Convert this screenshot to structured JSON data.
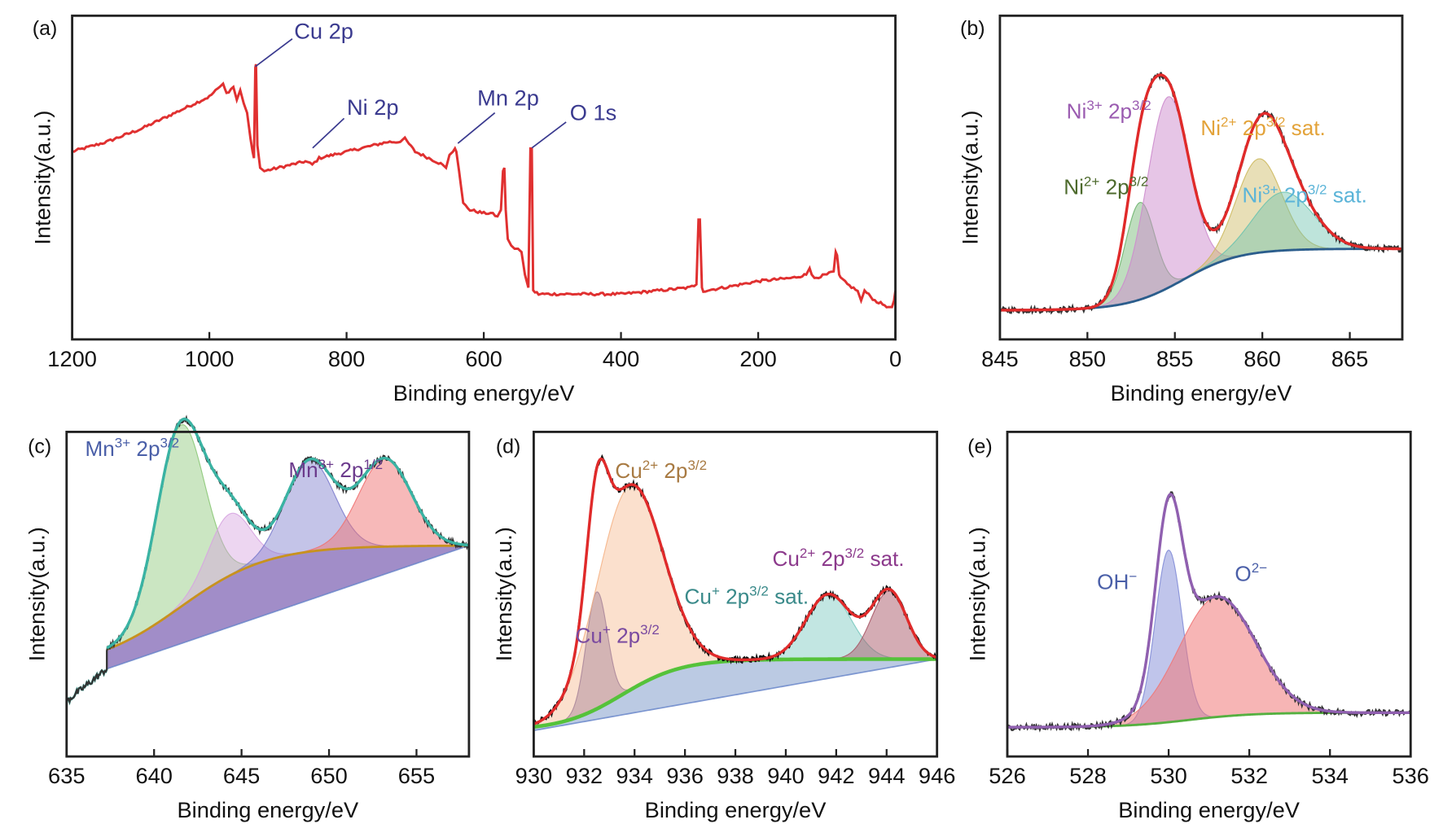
{
  "chart_data": [
    {
      "panel": "(a)",
      "type": "line",
      "xlabel": "Binding energy/eV",
      "ylabel": "Intensity(a.u.)",
      "xlim": [
        1200,
        0
      ],
      "ylim": [
        0,
        1
      ],
      "x_reversed": true,
      "xticks": [
        1200,
        1000,
        800,
        600,
        400,
        200,
        0
      ],
      "grid": false,
      "line_color": "#e03030",
      "series": [
        {
          "x": [
            1200,
            1150,
            1100,
            1050,
            1000,
            985,
            980,
            975,
            965,
            960,
            955,
            950,
            945,
            940,
            937,
            935,
            933,
            932,
            930,
            926,
            920,
            900,
            880,
            860,
            850,
            840,
            820,
            800,
            780,
            760,
            740,
            725,
            715,
            700,
            680,
            660,
            655,
            650,
            645,
            642,
            640,
            636,
            630,
            620,
            600,
            590,
            580,
            575,
            572,
            570,
            568,
            565,
            560,
            555,
            550,
            545,
            540,
            535,
            532,
            530,
            528,
            520,
            500,
            450,
            400,
            350,
            300,
            290,
            287,
            285,
            282,
            280,
            250,
            200,
            150,
            130,
            125,
            122,
            118,
            100,
            90,
            87,
            85,
            82,
            80,
            70,
            55,
            50,
            45,
            30,
            10,
            5,
            2,
            0
          ],
          "y": [
            0.58,
            0.61,
            0.65,
            0.7,
            0.75,
            0.78,
            0.79,
            0.76,
            0.78,
            0.74,
            0.77,
            0.73,
            0.7,
            0.62,
            0.58,
            0.56,
            0.84,
            0.85,
            0.6,
            0.53,
            0.52,
            0.53,
            0.54,
            0.55,
            0.54,
            0.56,
            0.57,
            0.58,
            0.59,
            0.6,
            0.61,
            0.61,
            0.62,
            0.58,
            0.56,
            0.54,
            0.53,
            0.57,
            0.58,
            0.59,
            0.58,
            0.52,
            0.42,
            0.4,
            0.39,
            0.39,
            0.38,
            0.4,
            0.52,
            0.53,
            0.4,
            0.31,
            0.29,
            0.28,
            0.28,
            0.27,
            0.2,
            0.16,
            0.59,
            0.59,
            0.15,
            0.14,
            0.14,
            0.14,
            0.14,
            0.15,
            0.16,
            0.17,
            0.37,
            0.37,
            0.16,
            0.15,
            0.16,
            0.18,
            0.19,
            0.2,
            0.22,
            0.2,
            0.19,
            0.2,
            0.21,
            0.27,
            0.26,
            0.2,
            0.19,
            0.17,
            0.15,
            0.12,
            0.15,
            0.12,
            0.1,
            0.1,
            0.12,
            0.15
          ]
        }
      ],
      "annotations": [
        {
          "id": "cu",
          "base": "Cu 2p",
          "x": 932
        },
        {
          "id": "ni",
          "base": "Ni 2p",
          "x": 852
        },
        {
          "id": "mn",
          "base": "Mn 2p",
          "x": 641
        },
        {
          "id": "o",
          "base": "O 1s",
          "x": 530
        }
      ]
    },
    {
      "panel": "(b)",
      "type": "line",
      "xlabel": "Binding energy/eV",
      "ylabel": "Intensity(a.u.)",
      "xlim": [
        845,
        868
      ],
      "ylim": [
        0,
        1
      ],
      "xticks": [
        845,
        850,
        855,
        860,
        865
      ],
      "grid": false,
      "envelope_color": "#e02a2a",
      "raw_color": "#333333",
      "background": {
        "type": "shirley",
        "start": 0.09,
        "end": 0.28,
        "step_center": 855.5,
        "step_width": 1.6,
        "color": "#2b5d8c"
      },
      "components": [
        {
          "name": "Ni2+ 2p3/2",
          "center": 853.0,
          "amplitude": 0.3,
          "sigma": 0.85,
          "color": "rgba(110,180,110,0.45)"
        },
        {
          "name": "Ni3+ 2p3/2",
          "center": 854.6,
          "amplitude": 0.59,
          "sigma": 1.2,
          "color": "rgba(205,140,205,0.50)"
        },
        {
          "name": "Ni2+ 2p3/2 sat.",
          "center": 859.8,
          "amplitude": 0.29,
          "sigma": 1.3,
          "color": "rgba(205,185,95,0.45)"
        },
        {
          "name": "Ni3+ 2p3/2 sat.",
          "center": 861.2,
          "amplitude": 0.18,
          "sigma": 1.7,
          "color": "rgba(110,195,175,0.45)"
        }
      ],
      "annotations": [
        {
          "id": "ni3",
          "base": "Ni",
          "charge": "3+",
          "mid": " 2p",
          "orbital": "3/2",
          "suffix": "",
          "color": "#9a5bb0"
        },
        {
          "id": "ni2sat",
          "base": "Ni",
          "charge": "2+",
          "mid": " 2p",
          "orbital": "3/2",
          "suffix": " sat.",
          "color": "#e3a33a"
        },
        {
          "id": "ni2",
          "base": "Ni",
          "charge": "2+",
          "mid": " 2p",
          "orbital": "3/2",
          "suffix": "",
          "color": "#4d6a2c"
        },
        {
          "id": "ni3sat",
          "base": "Ni",
          "charge": "3+",
          "mid": " 2p",
          "orbital": "3/2",
          "suffix": " sat.",
          "color": "#5bb4d8"
        }
      ]
    },
    {
      "panel": "(c)",
      "type": "line",
      "xlabel": "Binding energy/eV",
      "ylabel": "Intensity(a.u.)",
      "xlim": [
        635,
        658
      ],
      "ylim": [
        0,
        1
      ],
      "xticks": [
        635,
        640,
        645,
        650,
        655
      ],
      "grid": false,
      "envelope_color": "#3ab3a3",
      "raw_color": "#333333",
      "background": {
        "type": "shirley",
        "start": 0.27,
        "end": 0.65,
        "step_center": 641.5,
        "step_width": 2.5,
        "linear_start": 0.27,
        "linear_end": 0.65,
        "fit_start": 637.3,
        "color": "#c8921e",
        "fill": "rgba(110,80,170,0.65)"
      },
      "components": [
        {
          "name": "Mn3+ 2p3/2",
          "center": 641.5,
          "amplitude": 0.56,
          "sigma": 1.35,
          "color": "rgba(140,200,120,0.45)"
        },
        {
          "name": "",
          "center": 644.3,
          "amplitude": 0.19,
          "sigma": 1.2,
          "color": "rgba(215,165,225,0.45)"
        },
        {
          "name": "",
          "center": 648.9,
          "amplitude": 0.28,
          "sigma": 1.4,
          "color": "rgba(125,125,205,0.45)"
        },
        {
          "name": "Mn3+ 2p1/2",
          "center": 653.2,
          "amplitude": 0.27,
          "sigma": 1.5,
          "color": "rgba(240,115,115,0.50)"
        }
      ],
      "annotations": [
        {
          "id": "mn32",
          "base": "Mn",
          "charge": "3+",
          "mid": " 2p",
          "orbital": "3/2",
          "suffix": "",
          "color": "#4a5fa8"
        },
        {
          "id": "mn12",
          "base": "Mn",
          "charge": "3+",
          "mid": " 2p",
          "orbital": "1/2",
          "suffix": "",
          "color": "#6b3a8c"
        }
      ]
    },
    {
      "panel": "(d)",
      "type": "line",
      "xlabel": "Binding energy/eV",
      "ylabel": "Intensity(a.u.)",
      "xlim": [
        930,
        946
      ],
      "ylim": [
        0,
        1
      ],
      "xticks": [
        930,
        932,
        934,
        936,
        938,
        940,
        942,
        944,
        946
      ],
      "grid": false,
      "envelope_color": "#e02a2a",
      "raw_color": "#111111",
      "background": {
        "type": "shirley",
        "start": 0.08,
        "end": 0.3,
        "step_center": 933.5,
        "step_width": 1.2,
        "linear_start": 0.08,
        "linear_end": 0.3,
        "color": "#55c23a",
        "fill": "rgba(120,150,200,0.5)"
      },
      "components": [
        {
          "name": "Cu+ 2p3/2",
          "center": 932.5,
          "amplitude": 0.36,
          "sigma": 0.42,
          "color": "rgba(120,105,170,0.50)"
        },
        {
          "name": "Cu2+ 2p3/2",
          "center": 933.8,
          "amplitude": 0.63,
          "sigma": 1.3,
          "color": "rgba(245,180,135,0.42)"
        },
        {
          "name": "Cu+ 2p3/2 sat.",
          "center": 941.7,
          "amplitude": 0.2,
          "sigma": 0.9,
          "color": "rgba(120,200,190,0.45)"
        },
        {
          "name": "Cu2+ 2p3/2 sat.",
          "center": 944.1,
          "amplitude": 0.21,
          "sigma": 0.7,
          "color": "rgba(170,90,105,0.50)"
        }
      ],
      "annotations": [
        {
          "id": "cu2",
          "base": "Cu",
          "charge": "2+",
          "mid": " 2p",
          "orbital": "3/2",
          "suffix": "",
          "color": "#a87a42"
        },
        {
          "id": "cu2sat",
          "base": "Cu",
          "charge": "2+",
          "mid": " 2p",
          "orbital": "3/2",
          "suffix": " sat.",
          "color": "#8c3a8c"
        },
        {
          "id": "cu1sat",
          "base": "Cu",
          "charge": "+",
          "mid": " 2p",
          "orbital": "3/2",
          "suffix": " sat.",
          "color": "#3a8a8a"
        },
        {
          "id": "cu1",
          "base": "Cu",
          "charge": "+",
          "mid": " 2p",
          "orbital": "3/2",
          "suffix": "",
          "color": "#7a4aa0"
        }
      ]
    },
    {
      "panel": "(e)",
      "type": "line",
      "xlabel": "Binding energy/eV",
      "ylabel": "Intensity(a.u.)",
      "xlim": [
        526,
        536
      ],
      "ylim": [
        0,
        1
      ],
      "xticks": [
        526,
        528,
        530,
        532,
        534,
        536
      ],
      "grid": false,
      "envelope_color": "#9060b0",
      "raw_color": "#333333",
      "background": {
        "type": "shirley",
        "start": 0.09,
        "end": 0.135,
        "step_center": 530.5,
        "step_width": 0.8,
        "color": "#55b040"
      },
      "components": [
        {
          "name": "OH−",
          "center": 530.0,
          "amplitude": 0.53,
          "sigma": 0.33,
          "color": "rgba(130,140,215,0.50)"
        },
        {
          "name": "O2−",
          "center": 531.2,
          "amplitude": 0.37,
          "sigma": 0.95,
          "color": "rgba(240,120,120,0.55)"
        }
      ],
      "annotations": [
        {
          "id": "oh",
          "base": "OH",
          "charge": "−",
          "mid": "",
          "orbital": "",
          "suffix": "",
          "color": "#4a5fa8"
        },
        {
          "id": "o2",
          "base": "O",
          "charge": "2−",
          "mid": "",
          "orbital": "",
          "suffix": "",
          "color": "#4a5fa8"
        }
      ]
    }
  ]
}
